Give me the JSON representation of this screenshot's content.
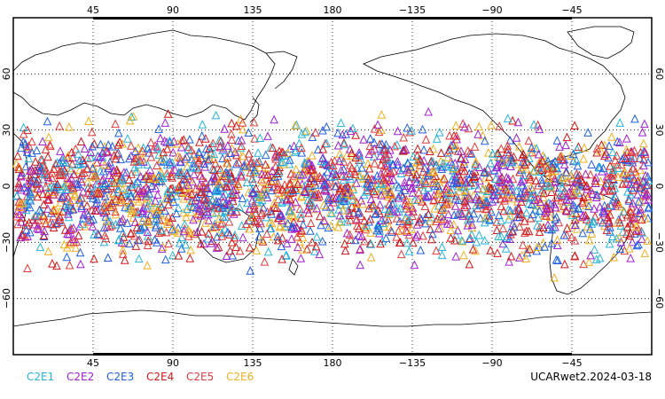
{
  "figure": {
    "projection": "cylindrical equidistant",
    "lon_range": [
      0,
      360
    ],
    "lat_range": [
      -90,
      90
    ],
    "grid": "dotted",
    "top_lon_labels": [
      "45",
      "90",
      "135",
      "180",
      "−135",
      "−90",
      "−45"
    ],
    "bottom_lon_labels": [
      "45",
      "90",
      "135",
      "180",
      "−135",
      "−90",
      "−45"
    ],
    "lat_labels": [
      "60",
      "30",
      "0",
      "−30",
      "−60"
    ],
    "marker": "triangle-outline",
    "point_band_lat": [
      -50,
      45
    ]
  },
  "legend": {
    "items": [
      {
        "label": "C2E1",
        "color": "#26b4d9"
      },
      {
        "label": "C2E2",
        "color": "#a020d0"
      },
      {
        "label": "C2E3",
        "color": "#2060e0"
      },
      {
        "label": "C2E4",
        "color": "#d01818"
      },
      {
        "label": "C2E5",
        "color": "#e03c3c"
      },
      {
        "label": "C2E6",
        "color": "#f0b020"
      }
    ]
  },
  "footer": {
    "product": "UCARwet2.2024-03-18"
  }
}
